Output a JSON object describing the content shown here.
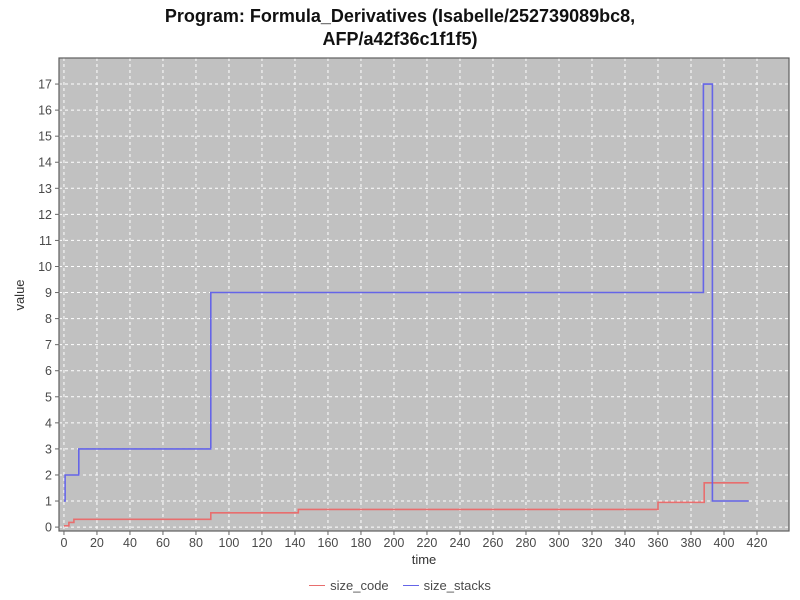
{
  "title": {
    "line1": "Program: Formula_Derivatives (Isabelle/252739089bc8,",
    "line2": "AFP/a42f36c1f1f5)"
  },
  "chart_data": {
    "type": "line",
    "interpolation": "step-after",
    "title": "Program: Formula_Derivatives (Isabelle/252739089bc8, AFP/a42f36c1f1f5)",
    "xlabel": "time",
    "ylabel": "value",
    "xlim": [
      -3,
      439.4
    ],
    "ylim": [
      -0.15,
      18
    ],
    "x_ticks": [
      0,
      20,
      40,
      60,
      80,
      100,
      120,
      140,
      160,
      180,
      200,
      220,
      240,
      260,
      280,
      300,
      320,
      340,
      360,
      380,
      400,
      420
    ],
    "y_ticks": [
      0,
      1,
      2,
      3,
      4,
      5,
      6,
      7,
      8,
      9,
      10,
      11,
      12,
      13,
      14,
      15,
      16,
      17
    ],
    "grid": true,
    "grid_color": "#ffffff",
    "plot_bg": "#c1c1c1",
    "plot_border_color": "#5f5f5f",
    "tick_color": "#666666",
    "tick_label_color": "#4a4a4a",
    "legend_position": "bottom",
    "series": [
      {
        "name": "size_code",
        "color": "#e86e6e",
        "points": [
          [
            0,
            0.05
          ],
          [
            3,
            0.18
          ],
          [
            6,
            0.3
          ],
          [
            89,
            0.55
          ],
          [
            142,
            0.68
          ],
          [
            360,
            0.95
          ],
          [
            388,
            1.7
          ],
          [
            415,
            1.7
          ]
        ]
      },
      {
        "name": "size_stacks",
        "color": "#6565e8",
        "points": [
          [
            0,
            1
          ],
          [
            0.7,
            2
          ],
          [
            9,
            3
          ],
          [
            89,
            9
          ],
          [
            387.5,
            17
          ],
          [
            393,
            1
          ],
          [
            415,
            1
          ]
        ]
      }
    ]
  },
  "legend": {
    "items": [
      {
        "label": "size_code",
        "color": "#e86e6e"
      },
      {
        "label": "size_stacks",
        "color": "#6565e8"
      }
    ]
  }
}
